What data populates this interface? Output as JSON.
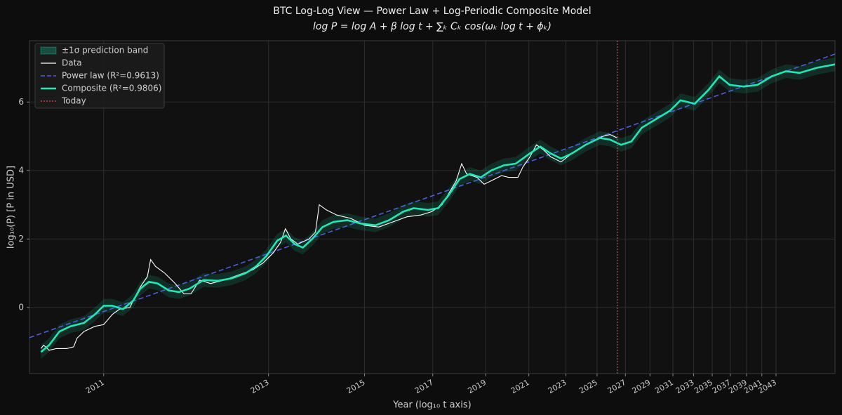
{
  "chart_data": {
    "type": "line",
    "title": "BTC Log-Log View — Power Law + Log-Periodic Composite Model",
    "subtitle": "log P = log A + β log t + ∑ₖ Cₖ cos(ωₖ log t + ϕₖ)",
    "x_label": "Year  (log₁₀ t axis)",
    "y_label": "log₁₀(P)  [P in USD]",
    "xlim": [
      2.726,
      4.202
    ],
    "ylim": [
      -1.93,
      7.79
    ],
    "xticks": [
      {
        "value": 2.862,
        "label": "2011"
      },
      {
        "value": 3.164,
        "label": "2013"
      },
      {
        "value": 3.34,
        "label": "2015"
      },
      {
        "value": 3.465,
        "label": "2017"
      },
      {
        "value": 3.562,
        "label": "2019"
      },
      {
        "value": 3.641,
        "label": "2021"
      },
      {
        "value": 3.709,
        "label": "2023"
      },
      {
        "value": 3.766,
        "label": "2025"
      },
      {
        "value": 3.818,
        "label": "2027"
      },
      {
        "value": 3.863,
        "label": "2029"
      },
      {
        "value": 3.905,
        "label": "2031"
      },
      {
        "value": 3.943,
        "label": "2033"
      },
      {
        "value": 3.977,
        "label": "2035"
      },
      {
        "value": 4.01,
        "label": "2037"
      },
      {
        "value": 4.04,
        "label": "2039"
      },
      {
        "value": 4.068,
        "label": "2041"
      },
      {
        "value": 4.094,
        "label": "2043"
      }
    ],
    "yticks": [
      0,
      2,
      4,
      6
    ],
    "grid": true,
    "legend": "upper left",
    "band": {
      "name": "±1σ prediction band",
      "color": "#1de9b6",
      "upper": [
        -1.1,
        -0.9,
        -0.5,
        -0.35,
        -0.25,
        0,
        0.25,
        0.25,
        0.15,
        0.4,
        0.75,
        0.95,
        0.9,
        0.7,
        0.65,
        0.75,
        1.0,
        0.98,
        1.05,
        1.2,
        1.4,
        1.7,
        2.15,
        2.3,
        2.05,
        1.95,
        2.2,
        2.55,
        2.7,
        2.75,
        2.65,
        2.6,
        2.75,
        3.0,
        3.1,
        3.05,
        3.1,
        3.5,
        3.95,
        4.1,
        4.0,
        4.2,
        4.35,
        4.4,
        4.7,
        4.9,
        4.7,
        4.55,
        4.7,
        4.95,
        5.15,
        5.1,
        4.95,
        5.05,
        5.45,
        5.7,
        5.95,
        6.25,
        6.15,
        6.55,
        6.95,
        6.7,
        6.65,
        6.7,
        6.95,
        7.1,
        7.05,
        7.2,
        7.3
      ],
      "lower": [
        -1.5,
        -1.3,
        -0.9,
        -0.75,
        -0.65,
        -0.4,
        -0.15,
        -0.15,
        -0.25,
        0,
        0.35,
        0.55,
        0.5,
        0.3,
        0.25,
        0.35,
        0.6,
        0.58,
        0.65,
        0.8,
        1.0,
        1.3,
        1.75,
        1.9,
        1.65,
        1.55,
        1.8,
        2.15,
        2.3,
        2.35,
        2.25,
        2.2,
        2.35,
        2.6,
        2.7,
        2.65,
        2.7,
        3.1,
        3.55,
        3.7,
        3.6,
        3.8,
        3.95,
        4.0,
        4.3,
        4.5,
        4.3,
        4.15,
        4.3,
        4.55,
        4.75,
        4.7,
        4.55,
        4.65,
        5.05,
        5.3,
        5.55,
        5.85,
        5.75,
        6.15,
        6.55,
        6.3,
        6.25,
        6.3,
        6.55,
        6.7,
        6.65,
        6.8,
        6.9
      ]
    },
    "series": [
      {
        "name": "Data",
        "color": "#ffffff",
        "x": [
          2.747,
          2.752,
          2.762,
          2.775,
          2.794,
          2.807,
          2.813,
          2.826,
          2.846,
          2.862,
          2.878,
          2.891,
          2.91,
          2.919,
          2.929,
          2.942,
          2.948,
          2.957,
          2.974,
          2.993,
          3.009,
          3.022,
          3.038,
          3.058,
          3.083,
          3.109,
          3.135,
          3.154,
          3.173,
          3.186,
          3.195,
          3.205,
          3.218,
          3.238,
          3.25,
          3.257,
          3.27,
          3.289,
          3.315,
          3.34,
          3.366,
          3.392,
          3.418,
          3.443,
          3.463,
          3.482,
          3.495,
          3.508,
          3.518,
          3.527,
          3.546,
          3.559,
          3.572,
          3.591,
          3.604,
          3.621,
          3.63,
          3.643,
          3.655,
          3.668,
          3.681,
          3.7,
          3.72,
          3.739,
          3.758,
          3.777,
          3.79,
          3.803
        ],
        "values": [
          -1.2,
          -1.1,
          -1.25,
          -1.2,
          -1.2,
          -1.15,
          -0.9,
          -0.7,
          -0.55,
          -0.5,
          -0.2,
          -0.05,
          0,
          0.3,
          0.6,
          0.9,
          1.4,
          1.2,
          1.0,
          0.7,
          0.4,
          0.4,
          0.8,
          0.7,
          0.8,
          0.95,
          1.1,
          1.3,
          1.6,
          1.9,
          2.3,
          2.0,
          1.85,
          2.0,
          2.2,
          3.0,
          2.85,
          2.7,
          2.6,
          2.4,
          2.35,
          2.5,
          2.65,
          2.7,
          2.8,
          3.0,
          3.35,
          3.7,
          4.2,
          3.9,
          3.8,
          3.6,
          3.7,
          3.85,
          3.8,
          3.8,
          4.1,
          4.4,
          4.75,
          4.6,
          4.4,
          4.25,
          4.5,
          4.7,
          4.85,
          5.0,
          5.05,
          4.95
        ]
      },
      {
        "name": "Power law (R²=0.9613)",
        "color": "#4a5fe0",
        "dashed": true,
        "x": [
          2.726,
          4.202
        ],
        "values": [
          -0.88,
          7.4
        ]
      },
      {
        "name": "Composite (R²=0.9806)",
        "color": "#1de9b6",
        "x": [
          2.747,
          2.762,
          2.781,
          2.801,
          2.826,
          2.846,
          2.862,
          2.878,
          2.897,
          2.916,
          2.929,
          2.945,
          2.961,
          2.981,
          3.0,
          3.019,
          3.045,
          3.071,
          3.096,
          3.122,
          3.141,
          3.16,
          3.18,
          3.196,
          3.212,
          3.227,
          3.244,
          3.263,
          3.283,
          3.308,
          3.334,
          3.36,
          3.385,
          3.411,
          3.43,
          3.456,
          3.475,
          3.495,
          3.514,
          3.533,
          3.553,
          3.572,
          3.595,
          3.617,
          3.643,
          3.662,
          3.681,
          3.7,
          3.72,
          3.745,
          3.771,
          3.79,
          3.81,
          3.829,
          3.848,
          3.874,
          3.9,
          3.919,
          3.945,
          3.97,
          3.99,
          4.009,
          4.035,
          4.06,
          4.086,
          4.112,
          4.137,
          4.169,
          4.202
        ],
        "values": [
          -1.3,
          -1.1,
          -0.7,
          -0.55,
          -0.45,
          -0.2,
          0.05,
          0.05,
          -0.05,
          0.2,
          0.55,
          0.75,
          0.7,
          0.5,
          0.45,
          0.55,
          0.8,
          0.78,
          0.85,
          1.0,
          1.2,
          1.5,
          1.95,
          2.1,
          1.85,
          1.75,
          2.0,
          2.35,
          2.5,
          2.55,
          2.45,
          2.4,
          2.55,
          2.8,
          2.9,
          2.85,
          2.9,
          3.3,
          3.75,
          3.9,
          3.8,
          4.0,
          4.15,
          4.2,
          4.5,
          4.7,
          4.5,
          4.35,
          4.5,
          4.75,
          4.95,
          4.9,
          4.75,
          4.85,
          5.25,
          5.5,
          5.75,
          6.05,
          5.95,
          6.35,
          6.75,
          6.5,
          6.45,
          6.5,
          6.75,
          6.9,
          6.85,
          7.0,
          7.1
        ]
      }
    ],
    "today": {
      "name": "Today",
      "x": 3.803,
      "color": "#e04848"
    }
  }
}
